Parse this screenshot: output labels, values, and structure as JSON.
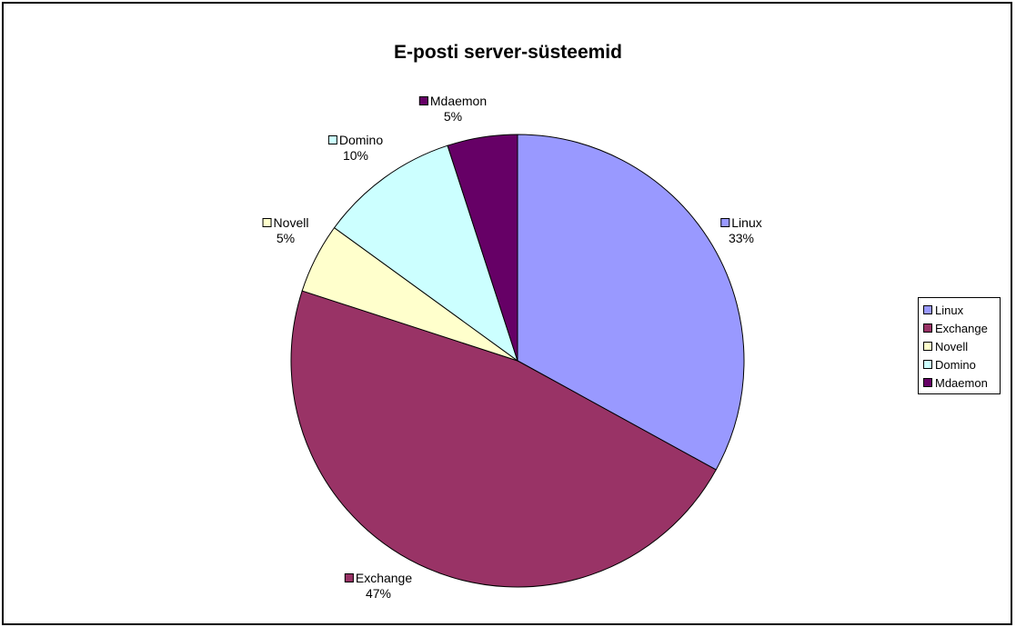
{
  "chart_data": {
    "type": "pie",
    "title": "E-posti server-süsteemid",
    "slices": [
      {
        "name": "Linux",
        "value": 33,
        "label": "33%",
        "color": "#9999ff"
      },
      {
        "name": "Exchange",
        "value": 47,
        "label": "47%",
        "color": "#993366"
      },
      {
        "name": "Novell",
        "value": 5,
        "label": "5%",
        "color": "#ffffcc"
      },
      {
        "name": "Domino",
        "value": 10,
        "label": "10%",
        "color": "#ccffff"
      },
      {
        "name": "Mdaemon",
        "value": 5,
        "label": "5%",
        "color": "#660066"
      }
    ],
    "legend": {
      "position": "right",
      "items": [
        "Linux",
        "Exchange",
        "Novell",
        "Domino",
        "Mdaemon"
      ]
    }
  }
}
